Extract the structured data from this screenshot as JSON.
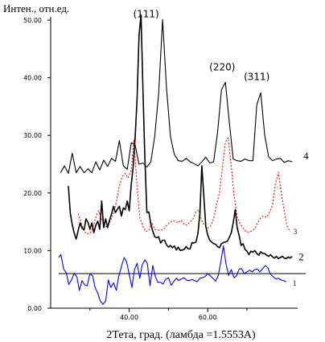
{
  "chart_data": {
    "type": "line",
    "ylabel": "Интен., отн.ед.",
    "xlabel": "2Тета, град. (ламбда =1.5553А)",
    "xlim": [
      20,
      87
    ],
    "ylim": [
      0,
      50
    ],
    "yticks": [
      {
        "value": 0,
        "label": "0.00"
      },
      {
        "value": 10,
        "label": "10.00"
      },
      {
        "value": 20,
        "label": "20.00"
      },
      {
        "value": 30,
        "label": "30.00"
      },
      {
        "value": 40,
        "label": "40.00"
      },
      {
        "value": 50,
        "label": "50.00"
      }
    ],
    "xticks": [
      {
        "value": 40,
        "label": "40.00"
      },
      {
        "value": 60,
        "label": "60.00"
      }
    ],
    "minor_xticks": [
      30,
      50,
      70
    ],
    "peak_labels": [
      {
        "text": "(111)",
        "x": 44.3,
        "y": 50.5
      },
      {
        "text": "(220)",
        "x": 63.7,
        "y": 41.3
      },
      {
        "text": "(311)",
        "x": 72.5,
        "y": 39.6
      }
    ],
    "series": [
      {
        "name": "1",
        "color": "#0000ff",
        "style": "solid",
        "x": [
          22.0,
          22.6,
          23.3,
          24.0,
          24.6,
          25.3,
          26.0,
          26.7,
          27.3,
          28.0,
          28.7,
          29.3,
          30.0,
          30.7,
          31.3,
          32.0,
          32.6,
          33.3,
          34.0,
          34.7,
          35.3,
          36.0,
          36.7,
          37.3,
          38.0,
          38.7,
          39.3,
          40.0,
          40.7,
          41.3,
          42.0,
          42.7,
          43.3,
          44.0,
          44.6,
          45.3,
          46.0,
          46.7,
          47.3,
          48.0,
          48.6,
          49.3,
          50.0,
          50.7,
          51.3,
          52.0,
          52.6,
          53.3,
          54.0,
          54.7,
          55.3,
          56.0,
          56.6,
          57.3,
          58.0,
          58.7,
          59.3,
          60.0,
          60.7,
          61.3,
          62.0,
          62.7,
          63.3,
          64.0,
          64.6,
          65.3,
          66.0,
          66.7,
          67.3,
          68.0,
          68.6,
          69.3,
          70.0,
          70.7,
          71.3,
          72.0,
          72.6,
          73.3,
          74.0,
          74.7,
          75.3,
          76.0,
          76.6,
          77.3,
          78.0,
          78.7,
          79.3,
          80.0
        ],
        "y": [
          8.8,
          9.3,
          6.8,
          6.1,
          4.1,
          4.9,
          6.1,
          5.4,
          3.1,
          4.8,
          4.0,
          3.9,
          6.0,
          5.6,
          3.6,
          2.6,
          1.3,
          0.7,
          1.2,
          4.9,
          3.6,
          4.4,
          3.1,
          5.4,
          7.2,
          8.8,
          8.1,
          5.9,
          3.6,
          6.6,
          7.8,
          5.2,
          7.5,
          8.4,
          7.8,
          3.9,
          7.4,
          5.4,
          4.5,
          4.5,
          4.2,
          5.0,
          5.3,
          4.0,
          4.6,
          5.2,
          4.8,
          5.1,
          5.3,
          4.8,
          4.8,
          5.0,
          4.8,
          4.6,
          5.2,
          5.3,
          5.5,
          6.0,
          5.6,
          5.2,
          4.7,
          5.7,
          7.9,
          10.8,
          7.9,
          5.7,
          6.7,
          5.3,
          5.6,
          6.8,
          6.9,
          6.0,
          6.3,
          6.6,
          6.3,
          6.7,
          6.8,
          6.3,
          6.9,
          7.4,
          7.0,
          5.9,
          5.5,
          5.1,
          5.2,
          4.9,
          4.8,
          4.6
        ]
      },
      {
        "name": "2",
        "color": "#000000",
        "style": "solid",
        "x": [
          24.5,
          25.0,
          25.5,
          26.0,
          26.5,
          27.0,
          27.5,
          28.0,
          28.5,
          29.0,
          29.5,
          30.0,
          30.5,
          31.0,
          31.5,
          32.0,
          32.5,
          33.0,
          33.5,
          34.0,
          34.5,
          35.0,
          35.5,
          36.0,
          36.5,
          37.0,
          37.5,
          38.0,
          38.5,
          39.0,
          39.5,
          40.0,
          40.5,
          41.0,
          41.5,
          42.0,
          42.5,
          43.0,
          43.5,
          44.0,
          44.5,
          45.0,
          45.5,
          46.0,
          46.5,
          47.0,
          47.5,
          48.0,
          48.5,
          49.0,
          49.5,
          50.0,
          50.5,
          51.0,
          51.5,
          52.0,
          52.5,
          53.0,
          53.5,
          54.0,
          54.5,
          55.0,
          55.5,
          56.0,
          56.5,
          57.0,
          57.5,
          58.0,
          58.5,
          59.0,
          59.5,
          60.0,
          60.5,
          61.0,
          61.5,
          62.0,
          62.5,
          63.0,
          63.5,
          64.0,
          64.5,
          65.0,
          65.5,
          66.0,
          66.5,
          67.0,
          67.5,
          68.0,
          68.5,
          69.0,
          69.5,
          70.0,
          70.5,
          71.0,
          71.5,
          72.0,
          72.5,
          73.0,
          73.5,
          74.0,
          74.5,
          75.0,
          75.5,
          76.0,
          76.5,
          77.0,
          77.5,
          78.0,
          78.5,
          79.0,
          79.5,
          80.0,
          80.5,
          81.0,
          81.5
        ],
        "y": [
          21.2,
          16.5,
          14.5,
          13.0,
          12.0,
          13.5,
          14.8,
          13.9,
          13.6,
          15.5,
          14.9,
          13.7,
          14.8,
          13.1,
          14.4,
          15.1,
          13.7,
          18.6,
          14.0,
          15.5,
          14.0,
          15.3,
          16.3,
          17.7,
          16.6,
          17.2,
          17.7,
          16.0,
          17.4,
          17.1,
          18.6,
          16.9,
          21.4,
          24.5,
          29.4,
          36.3,
          47.3,
          50.9,
          37.9,
          26.0,
          16.6,
          16.7,
          14.6,
          13.4,
          12.4,
          12.2,
          12.4,
          11.3,
          11.8,
          11.8,
          11.0,
          10.6,
          10.9,
          10.5,
          10.8,
          10.1,
          10.6,
          10.0,
          10.1,
          10.2,
          10.7,
          10.3,
          10.3,
          11.4,
          11.3,
          11.5,
          12.9,
          16.5,
          24.7,
          19.6,
          14.2,
          12.7,
          11.8,
          11.5,
          11.2,
          11.1,
          10.7,
          10.5,
          11.2,
          11.4,
          11.5,
          11.6,
          12.3,
          13.1,
          14.8,
          17.1,
          14.0,
          12.6,
          10.9,
          11.2,
          10.2,
          9.9,
          9.3,
          9.9,
          9.7,
          10.0,
          9.5,
          9.2,
          9.8,
          9.5,
          9.5,
          9.2,
          9.0,
          9.3,
          8.9,
          8.7,
          9.0,
          8.6,
          8.8,
          9.0,
          8.7,
          8.6,
          8.9,
          8.7,
          9.0
        ]
      },
      {
        "name": "3",
        "color": "#ff0000",
        "style": "dotted",
        "x": [
          27.0,
          27.7,
          28.5,
          29.2,
          30.0,
          30.7,
          31.5,
          32.2,
          33.0,
          33.7,
          34.5,
          35.2,
          36.0,
          36.7,
          37.5,
          38.2,
          39.0,
          39.7,
          40.5,
          41.2,
          42.0,
          42.7,
          43.5,
          44.2,
          45.0,
          45.7,
          46.5,
          47.2,
          48.0,
          48.7,
          49.5,
          50.2,
          51.0,
          51.7,
          52.5,
          53.2,
          54.0,
          54.7,
          55.5,
          56.2,
          57.0,
          57.7,
          58.5,
          59.2,
          60.0,
          60.7,
          61.5,
          62.2,
          63.0,
          63.7,
          64.5,
          65.2,
          66.0,
          66.7,
          67.5,
          68.2,
          69.0,
          69.7,
          70.5,
          71.2,
          72.0,
          72.7,
          73.5,
          74.2,
          75.0,
          75.7,
          76.5,
          77.2,
          78.0,
          78.7,
          79.5,
          80.2,
          81.0
        ],
        "y": [
          16.4,
          14.9,
          13.4,
          12.9,
          13.0,
          13.9,
          15.8,
          16.9,
          15.5,
          14.1,
          14.2,
          15.2,
          16.4,
          18.4,
          21.2,
          22.9,
          23.4,
          22.6,
          24.0,
          29.2,
          21.1,
          15.7,
          14.2,
          13.3,
          13.5,
          14.9,
          13.7,
          13.6,
          13.5,
          13.7,
          14.3,
          14.8,
          15.2,
          15.1,
          14.8,
          15.3,
          14.6,
          14.4,
          15.0,
          15.4,
          16.7,
          17.1,
          15.2,
          14.4,
          13.9,
          14.2,
          15.5,
          17.9,
          20.1,
          24.2,
          28.8,
          29.6,
          24.6,
          19.6,
          15.9,
          14.7,
          13.9,
          13.3,
          13.2,
          13.4,
          13.8,
          14.8,
          15.7,
          16.0,
          15.8,
          16.6,
          17.9,
          21.5,
          23.6,
          20.2,
          16.8,
          14.3,
          13.3
        ]
      },
      {
        "name": "4",
        "color": "#000000",
        "style": "solid",
        "x": [
          22.5,
          23.5,
          24.5,
          25.5,
          26.5,
          27.5,
          28.5,
          29.5,
          30.5,
          31.5,
          32.5,
          33.5,
          34.5,
          35.5,
          36.5,
          37.5,
          38.5,
          39.5,
          40.5,
          41.5,
          42.5,
          43.5,
          44.5,
          45.5,
          46.5,
          47.5,
          48.5,
          49.5,
          50.5,
          51.5,
          52.5,
          53.5,
          54.5,
          55.5,
          56.5,
          57.5,
          58.5,
          59.5,
          60.5,
          61.5,
          62.5,
          63.5,
          64.5,
          65.5,
          66.5,
          67.5,
          68.5,
          69.5,
          70.5,
          71.5,
          72.5,
          73.5,
          74.5,
          75.5,
          76.5,
          77.5,
          78.5,
          79.5,
          80.5,
          81.5
        ],
        "y": [
          23.5,
          24.7,
          23.4,
          26.9,
          23.5,
          24.6,
          23.5,
          24.2,
          23.5,
          25.4,
          24.0,
          25.7,
          24.6,
          26.0,
          25.5,
          29.1,
          24.7,
          24.1,
          28.7,
          28.4,
          25.0,
          25.2,
          24.5,
          25.4,
          29.8,
          37.2,
          50.1,
          38.2,
          29.8,
          26.7,
          25.6,
          25.5,
          26.0,
          25.4,
          25.1,
          24.7,
          25.4,
          26.2,
          25.2,
          25.4,
          30.4,
          37.9,
          39.2,
          32.2,
          25.9,
          25.6,
          25.5,
          25.9,
          25.6,
          25.6,
          35.3,
          37.4,
          30.1,
          26.3,
          25.6,
          25.9,
          26.0,
          25.3,
          25.6,
          25.4
        ]
      },
      {
        "name": "baseline",
        "color": "#000000",
        "style": "solid",
        "x": [
          22.0,
          85.0
        ],
        "y": [
          6.0,
          6.0
        ]
      }
    ],
    "series_labels": [
      {
        "text": "1",
        "series": "1"
      },
      {
        "text": "2",
        "series": "2"
      },
      {
        "text": "3",
        "series": "3"
      },
      {
        "text": "4",
        "series": "4"
      }
    ],
    "grid": false,
    "legend": "none"
  }
}
